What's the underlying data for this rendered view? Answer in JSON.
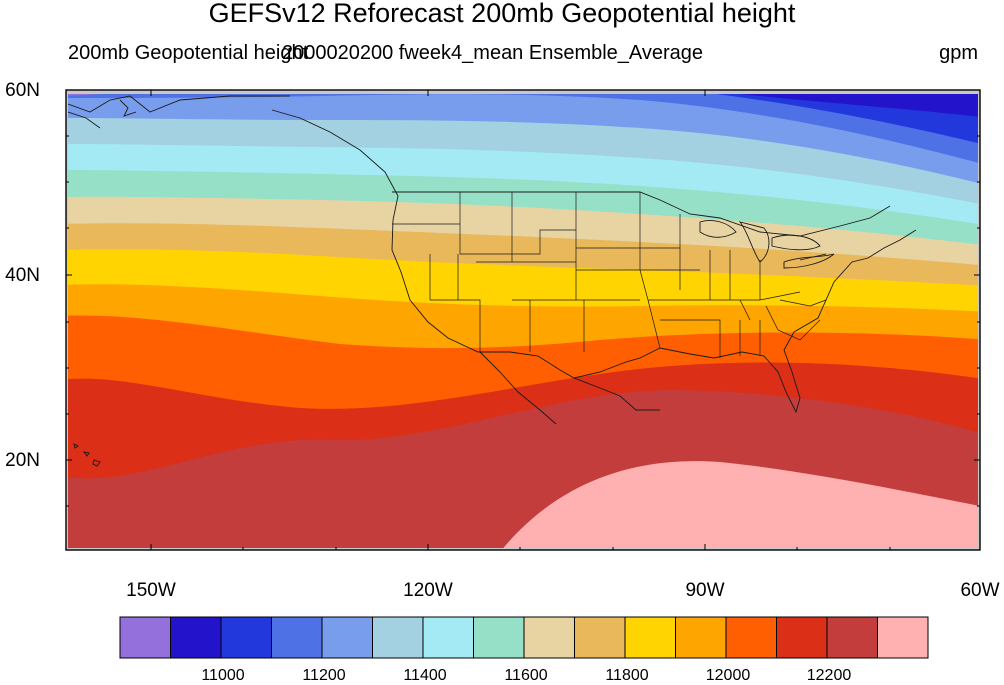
{
  "header": {
    "title": "GEFSv12 Reforecast 200mb Geopotential height",
    "left_subtitle": "200mb Geopotential height",
    "center_subtitle": "2000020200 fweek4_mean Ensemble_Average",
    "units": "gpm"
  },
  "map": {
    "lat_labels": [
      "60N",
      "40N",
      "20N"
    ],
    "lon_labels": [
      "150W",
      "120W",
      "90W",
      "60W"
    ]
  },
  "colorbar": {
    "colors": [
      "#9370db",
      "#2314cc",
      "#2238dd",
      "#4f71e6",
      "#789ded",
      "#a4d1e2",
      "#a3eaf4",
      "#95e0c6",
      "#e8d4a3",
      "#e8b85a",
      "#ffd400",
      "#ffa500",
      "#ff5f00",
      "#db2f17",
      "#c33d3d",
      "#ffb1b1"
    ],
    "labels": [
      "11000",
      "11200",
      "11400",
      "11600",
      "11800",
      "12000",
      "12200"
    ]
  }
}
